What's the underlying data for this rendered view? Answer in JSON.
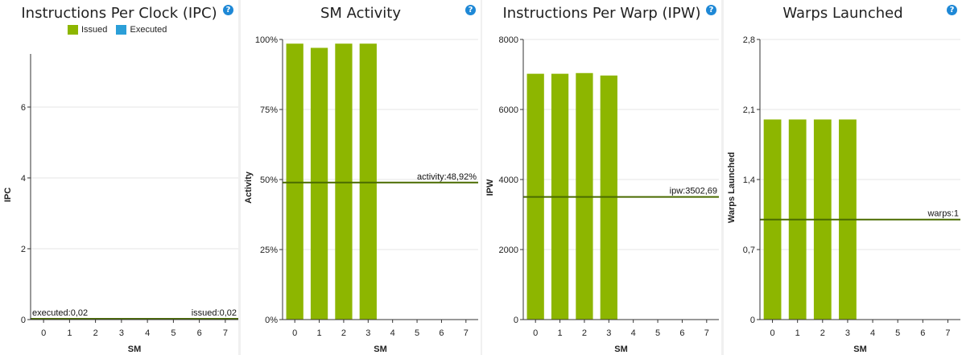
{
  "colors": {
    "bar": "#8db600",
    "ref_line": "#4a6b00",
    "grid": "#e6e6e6",
    "axis": "#333333",
    "help": "#1e88d6",
    "executed": "#2b9fd8"
  },
  "help_icon_glyph": "?",
  "legend": {
    "issued_label": "Issued",
    "executed_label": "Executed"
  },
  "chart_data": [
    {
      "type": "bar",
      "title": "Instructions Per Clock (IPC)",
      "xlabel": "SM",
      "ylabel": "IPC",
      "categories": [
        "0",
        "1",
        "2",
        "3",
        "4",
        "5",
        "6",
        "7"
      ],
      "series": [
        {
          "name": "Issued",
          "values": [
            0.02,
            0.02,
            0.02,
            0.02,
            0.02,
            0.02,
            0.02,
            0.02
          ]
        },
        {
          "name": "Executed",
          "values": [
            0.02,
            0.02,
            0.02,
            0.02,
            0.02,
            0.02,
            0.02,
            0.02
          ]
        }
      ],
      "ylim": [
        0,
        7.5
      ],
      "yticks": [
        0,
        2,
        4,
        6
      ],
      "ytick_labels": [
        "0",
        "2",
        "4",
        "6"
      ],
      "reference_lines": [
        {
          "value": 0.02,
          "label": "executed:0,02",
          "label_pos": "left"
        },
        {
          "value": 0.02,
          "label": "issued:0,02",
          "label_pos": "right"
        }
      ],
      "legend": "top"
    },
    {
      "type": "bar",
      "title": "SM Activity",
      "xlabel": "SM",
      "ylabel": "Activity",
      "categories": [
        "0",
        "1",
        "2",
        "3",
        "4",
        "5",
        "6",
        "7"
      ],
      "values": [
        98.5,
        97,
        98.5,
        98.5,
        0,
        0,
        0,
        0
      ],
      "ylim": [
        0,
        100
      ],
      "yticks": [
        0,
        25,
        50,
        75,
        100
      ],
      "ytick_labels": [
        "0%",
        "25%",
        "50%",
        "75%",
        "100%"
      ],
      "reference_lines": [
        {
          "value": 48.92,
          "label": "activity:48,92%",
          "label_pos": "right"
        }
      ]
    },
    {
      "type": "bar",
      "title": "Instructions Per Warp (IPW)",
      "xlabel": "SM",
      "ylabel": "IPW",
      "categories": [
        "0",
        "1",
        "2",
        "3",
        "4",
        "5",
        "6",
        "7"
      ],
      "values": [
        7020,
        7020,
        7040,
        6970,
        0,
        0,
        0,
        0
      ],
      "ylim": [
        0,
        8000
      ],
      "yticks": [
        0,
        2000,
        4000,
        6000,
        8000
      ],
      "ytick_labels": [
        "0",
        "2000",
        "4000",
        "6000",
        "8000"
      ],
      "reference_lines": [
        {
          "value": 3502.69,
          "label": "ipw:3502,69",
          "label_pos": "right"
        }
      ]
    },
    {
      "type": "bar",
      "title": "Warps Launched",
      "xlabel": "SM",
      "ylabel": "Warps Launched",
      "categories": [
        "0",
        "1",
        "2",
        "3",
        "4",
        "5",
        "6",
        "7"
      ],
      "values": [
        2,
        2,
        2,
        2,
        0,
        0,
        0,
        0
      ],
      "ylim": [
        0,
        2.8
      ],
      "yticks": [
        0,
        0.7,
        1.4,
        2.1,
        2.8
      ],
      "ytick_labels": [
        "0",
        "0,7",
        "1,4",
        "2,1",
        "2,8"
      ],
      "reference_lines": [
        {
          "value": 1,
          "label": "warps:1",
          "label_pos": "right"
        }
      ]
    }
  ]
}
